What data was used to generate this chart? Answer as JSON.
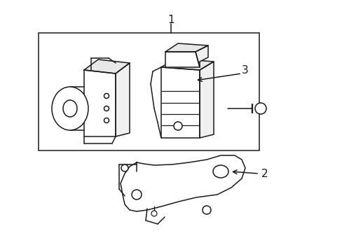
{
  "bg_color": "#ffffff",
  "line_color": "#1a1a1a",
  "line_width": 1.1,
  "fig_width": 4.89,
  "fig_height": 3.6,
  "dpi": 100,
  "label1": "1",
  "label2": "2",
  "label3": "3"
}
